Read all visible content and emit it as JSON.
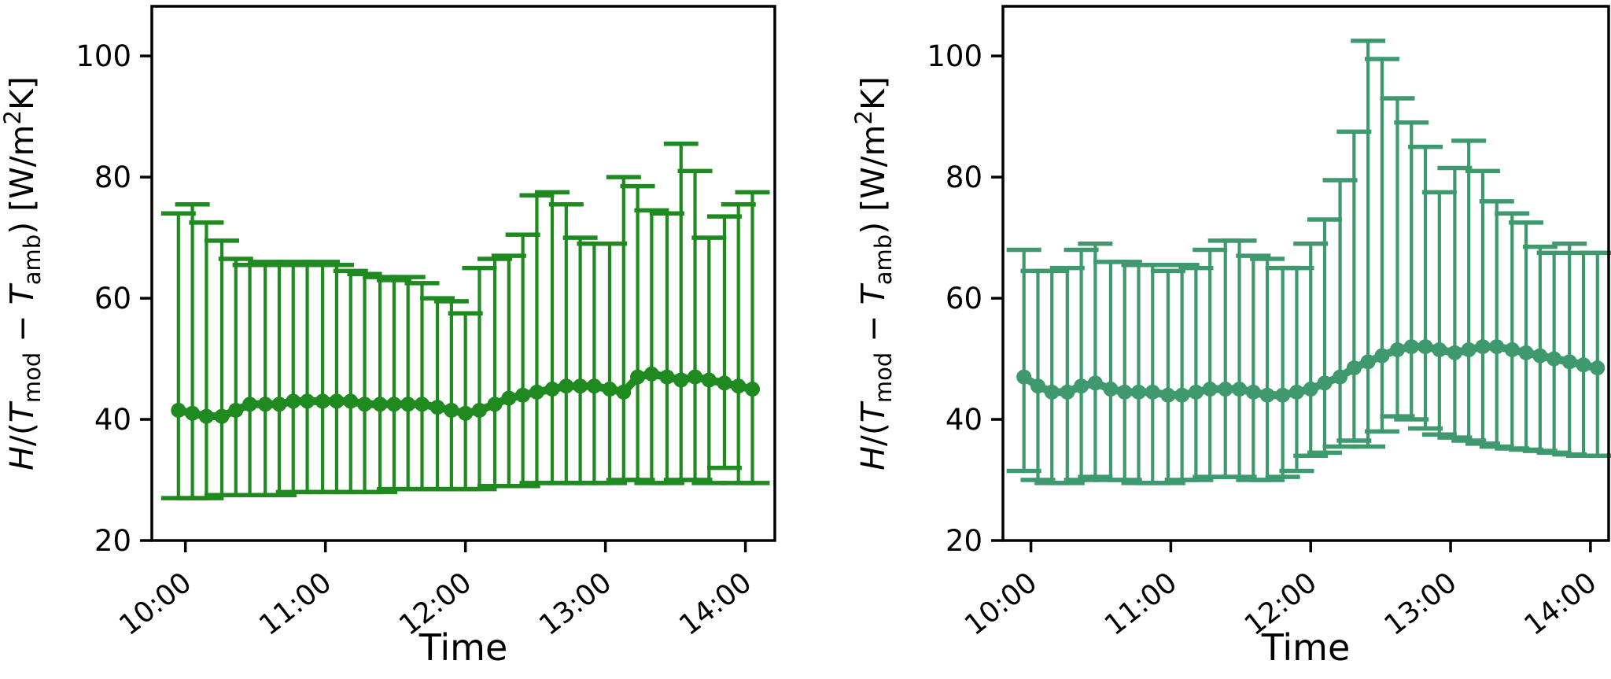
{
  "figure": {
    "description": "Two side-by-side error-bar time series of heat transfer coefficient ratio",
    "background": "#ffffff",
    "frame_color": "#000000"
  },
  "chart_data": [
    {
      "id": "left",
      "type": "line",
      "subtype": "errorbar-line-with-markers",
      "title": "",
      "xlabel": "Time",
      "ylabel": "H/(T_mod − T_amb) [W/m2K]",
      "ylabel_parts": [
        {
          "t": "H",
          "style": "italic"
        },
        {
          "t": "/(",
          "style": ""
        },
        {
          "t": "T",
          "style": "italic"
        },
        {
          "t": "mod",
          "style": "sub"
        },
        {
          "t": " − ",
          "style": ""
        },
        {
          "t": "T",
          "style": "italic"
        },
        {
          "t": "amb",
          "style": "sub"
        },
        {
          "t": ") [W/m",
          "style": ""
        },
        {
          "t": "2",
          "style": "sup"
        },
        {
          "t": "K]",
          "style": ""
        }
      ],
      "color": "#1F8A1F",
      "xlim": [
        9.76,
        14.21
      ],
      "ylim": [
        20,
        108.2
      ],
      "xticks": {
        "values": [
          10,
          11,
          12,
          13,
          14
        ],
        "labels": [
          "10:00",
          "11:00",
          "12:00",
          "13:00",
          "14:00"
        ]
      },
      "yticks": [
        20,
        40,
        60,
        80,
        100
      ],
      "legend": "none",
      "grid": false,
      "x": [
        9.95,
        10.05,
        10.15,
        10.26,
        10.36,
        10.46,
        10.57,
        10.67,
        10.77,
        10.87,
        10.98,
        11.08,
        11.18,
        11.28,
        11.39,
        11.49,
        11.59,
        11.69,
        11.8,
        11.9,
        12.0,
        12.1,
        12.21,
        12.31,
        12.41,
        12.51,
        12.62,
        12.72,
        12.82,
        12.92,
        13.03,
        13.13,
        13.23,
        13.33,
        13.44,
        13.54,
        13.64,
        13.74,
        13.85,
        13.95,
        14.05
      ],
      "mean": [
        41.5,
        41,
        40.5,
        40.5,
        41.5,
        42.5,
        42.5,
        42.5,
        43,
        43,
        43,
        43,
        43,
        42.5,
        42.5,
        42.5,
        42.5,
        42.5,
        42,
        41.5,
        41,
        41.5,
        42.5,
        43.5,
        44,
        44.5,
        45,
        45.5,
        45.5,
        45.5,
        45,
        44.5,
        47,
        47.5,
        47,
        46.5,
        47,
        46.5,
        46,
        45.5,
        45
      ],
      "upper": [
        74,
        75.5,
        72.5,
        69.5,
        66.5,
        65.5,
        66,
        65.5,
        66,
        65.5,
        66,
        65.5,
        64.5,
        64,
        63.5,
        63,
        63.5,
        62.5,
        60,
        59.5,
        57.5,
        65,
        66.5,
        67,
        70.5,
        77,
        77.5,
        75.5,
        70,
        69,
        69,
        80,
        78.5,
        74.5,
        74,
        85.5,
        81,
        70,
        73.5,
        75.5,
        77.5
      ],
      "lower": [
        27,
        27,
        27,
        27.5,
        27.5,
        27.5,
        27.5,
        27.5,
        28,
        28,
        28,
        28,
        28,
        28,
        28,
        28.5,
        28.5,
        28.5,
        28.5,
        28.5,
        28.5,
        28.5,
        29,
        29,
        29,
        29.5,
        29.5,
        29.5,
        29.5,
        29.5,
        29.5,
        30,
        30,
        29.5,
        29.5,
        30,
        30,
        29.5,
        32,
        29.5,
        29.5
      ]
    },
    {
      "id": "right",
      "type": "line",
      "subtype": "errorbar-line-with-markers",
      "title": "",
      "xlabel": "Time",
      "ylabel": "H/(T_mod − T_amb) [W/m2K]",
      "ylabel_parts": [
        {
          "t": "H",
          "style": "italic"
        },
        {
          "t": "/(",
          "style": ""
        },
        {
          "t": "T",
          "style": "italic"
        },
        {
          "t": "mod",
          "style": "sub"
        },
        {
          "t": " − ",
          "style": ""
        },
        {
          "t": "T",
          "style": "italic"
        },
        {
          "t": "amb",
          "style": "sub"
        },
        {
          "t": ") [W/m",
          "style": ""
        },
        {
          "t": "2",
          "style": "sup"
        },
        {
          "t": "K]",
          "style": ""
        }
      ],
      "color": "#3E9A6E",
      "xlim": [
        9.8,
        14.13
      ],
      "ylim": [
        20,
        108.2
      ],
      "xticks": {
        "values": [
          10,
          11,
          12,
          13,
          14
        ],
        "labels": [
          "10:00",
          "11:00",
          "12:00",
          "13:00",
          "14:00"
        ]
      },
      "yticks": [
        20,
        40,
        60,
        80,
        100
      ],
      "legend": "none",
      "grid": false,
      "x": [
        9.95,
        10.05,
        10.15,
        10.26,
        10.36,
        10.46,
        10.57,
        10.67,
        10.77,
        10.87,
        10.98,
        11.08,
        11.18,
        11.28,
        11.39,
        11.49,
        11.59,
        11.69,
        11.8,
        11.9,
        12.0,
        12.1,
        12.21,
        12.31,
        12.41,
        12.51,
        12.62,
        12.72,
        12.82,
        12.92,
        13.03,
        13.13,
        13.23,
        13.33,
        13.44,
        13.54,
        13.64,
        13.74,
        13.85,
        13.95,
        14.05
      ],
      "mean": [
        47,
        45.5,
        44.5,
        44.5,
        45.5,
        46,
        45,
        44.5,
        44.5,
        44.5,
        44,
        44,
        44.5,
        45,
        45,
        45,
        44.5,
        44,
        44,
        44.5,
        45,
        46,
        47,
        48.5,
        49.5,
        50.5,
        51.5,
        52,
        52,
        51.5,
        51,
        51.5,
        52,
        52,
        51.5,
        51,
        50.5,
        50,
        49.5,
        49,
        48.5
      ],
      "upper": [
        68,
        64.5,
        64.5,
        65,
        68,
        69,
        66,
        66,
        65.5,
        65.5,
        64.5,
        65.5,
        65,
        68,
        69.5,
        69.5,
        67,
        66.5,
        65,
        65,
        69,
        73,
        79.5,
        87.5,
        102.5,
        99.5,
        93,
        89,
        85,
        77.5,
        81.5,
        86,
        81,
        76,
        74,
        72.5,
        68.5,
        67.5,
        69,
        67.5,
        67.5
      ],
      "lower": [
        31.5,
        30,
        29.5,
        29.5,
        30,
        30.5,
        30,
        30,
        29.5,
        29.5,
        29.5,
        30,
        30,
        30.5,
        30.5,
        30.5,
        30,
        30,
        30.5,
        31.5,
        34,
        34.5,
        35.5,
        36.5,
        35.5,
        38,
        40.5,
        40,
        38.5,
        37.5,
        37,
        36.5,
        36,
        35.5,
        35.2,
        35,
        34.8,
        34.5,
        34.2,
        34,
        34
      ]
    }
  ]
}
